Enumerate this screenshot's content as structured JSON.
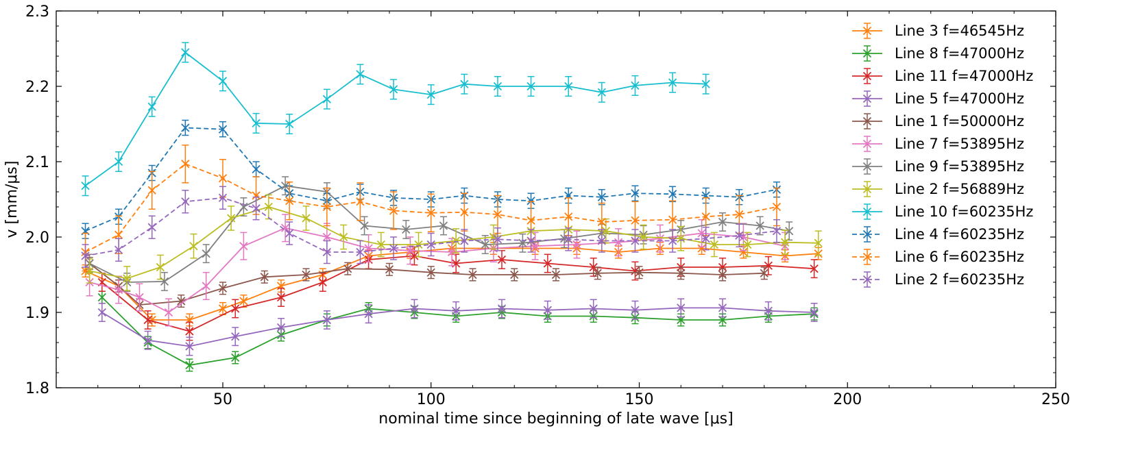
{
  "chart_data": {
    "type": "line",
    "title": "",
    "xlabel": "nominal time since beginning of late wave [μs]",
    "ylabel": "v [mm/μs]",
    "xlim": [
      10,
      250
    ],
    "ylim": [
      1.8,
      2.3
    ],
    "x_ticks": [
      50,
      100,
      150,
      200,
      250
    ],
    "x_tick_labels": [
      "50",
      "100",
      "150",
      "200",
      "250"
    ],
    "y_ticks": [
      1.8,
      1.9,
      2.0,
      2.1,
      2.2,
      2.3
    ],
    "y_tick_labels": [
      "1.8",
      "1.9",
      "2.0",
      "2.1",
      "2.2",
      "2.3"
    ],
    "legend_position": "top-right",
    "marker": "x",
    "grid": false,
    "series": [
      {
        "name": "Line 3 f=46545Hz",
        "color": "#ff7f0e",
        "dash": "solid",
        "err": 0.008,
        "points": [
          [
            17,
            1.955
          ],
          [
            25,
            1.935
          ],
          [
            33,
            1.89
          ],
          [
            42,
            1.89
          ],
          [
            50,
            1.905
          ],
          [
            55,
            1.915
          ],
          [
            64,
            1.935
          ],
          [
            74,
            1.95
          ],
          [
            85,
            1.975
          ],
          [
            95,
            1.98
          ],
          [
            105,
            1.985
          ],
          [
            115,
            1.985
          ],
          [
            125,
            1.985
          ],
          [
            135,
            1.985
          ],
          [
            145,
            1.98
          ],
          [
            155,
            1.985
          ],
          [
            165,
            1.985
          ],
          [
            175,
            1.98
          ],
          [
            185,
            1.975
          ],
          [
            193,
            1.978
          ]
        ]
      },
      {
        "name": "Line 8 f=47000Hz",
        "color": "#2ca02c",
        "dash": "solid",
        "err": 0.008,
        "points": [
          [
            21,
            1.92
          ],
          [
            32,
            1.86
          ],
          [
            42,
            1.83
          ],
          [
            53,
            1.84
          ],
          [
            64,
            1.87
          ],
          [
            75,
            1.89
          ],
          [
            85,
            1.905
          ],
          [
            96,
            1.9
          ],
          [
            106,
            1.895
          ],
          [
            117,
            1.9
          ],
          [
            128,
            1.895
          ],
          [
            139,
            1.895
          ],
          [
            149,
            1.893
          ],
          [
            160,
            1.89
          ],
          [
            170,
            1.89
          ],
          [
            181,
            1.895
          ],
          [
            192,
            1.898
          ]
        ]
      },
      {
        "name": "Line 11 f=47000Hz",
        "color": "#d62728",
        "dash": "solid",
        "err": 0.012,
        "points": [
          [
            21,
            1.94
          ],
          [
            32,
            1.89
          ],
          [
            42,
            1.875
          ],
          [
            53,
            1.905
          ],
          [
            64,
            1.92
          ],
          [
            74,
            1.94
          ],
          [
            85,
            1.97
          ],
          [
            96,
            1.975
          ],
          [
            106,
            1.965
          ],
          [
            117,
            1.97
          ],
          [
            128,
            1.965
          ],
          [
            139,
            1.96
          ],
          [
            149,
            1.955
          ],
          [
            160,
            1.96
          ],
          [
            170,
            1.96
          ],
          [
            181,
            1.962
          ],
          [
            192,
            1.958
          ]
        ]
      },
      {
        "name": "Line 5 f=47000Hz",
        "color": "#9467bd",
        "dash": "solid",
        "err": 0.012,
        "points": [
          [
            21,
            1.9
          ],
          [
            32,
            1.863
          ],
          [
            42,
            1.855
          ],
          [
            53,
            1.868
          ],
          [
            64,
            1.88
          ],
          [
            75,
            1.89
          ],
          [
            85,
            1.898
          ],
          [
            96,
            1.905
          ],
          [
            106,
            1.902
          ],
          [
            117,
            1.905
          ],
          [
            128,
            1.903
          ],
          [
            139,
            1.905
          ],
          [
            149,
            1.903
          ],
          [
            160,
            1.906
          ],
          [
            170,
            1.906
          ],
          [
            181,
            1.902
          ],
          [
            192,
            1.9
          ]
        ]
      },
      {
        "name": "Line 1 f=50000Hz",
        "color": "#8c564b",
        "dash": "solid",
        "err": 0.008,
        "points": [
          [
            18,
            1.965
          ],
          [
            25,
            1.935
          ],
          [
            30,
            1.91
          ],
          [
            40,
            1.915
          ],
          [
            50,
            1.932
          ],
          [
            60,
            1.947
          ],
          [
            70,
            1.95
          ],
          [
            80,
            1.958
          ],
          [
            90,
            1.957
          ],
          [
            100,
            1.953
          ],
          [
            110,
            1.95
          ],
          [
            120,
            1.95
          ],
          [
            130,
            1.95
          ],
          [
            140,
            1.952
          ],
          [
            150,
            1.953
          ],
          [
            160,
            1.952
          ],
          [
            170,
            1.95
          ],
          [
            180,
            1.952
          ]
        ]
      },
      {
        "name": "Line 7 f=53895Hz",
        "color": "#e377c2",
        "dash": "solid",
        "err": 0.018,
        "points": [
          [
            18,
            1.94
          ],
          [
            25,
            1.93
          ],
          [
            30,
            1.92
          ],
          [
            37,
            1.9
          ],
          [
            46,
            1.935
          ],
          [
            55,
            1.988
          ],
          [
            65,
            2.012
          ],
          [
            75,
            2.0
          ],
          [
            85,
            1.985
          ],
          [
            95,
            1.982
          ],
          [
            105,
            1.98
          ],
          [
            115,
            1.985
          ],
          [
            125,
            1.988
          ],
          [
            135,
            1.99
          ],
          [
            145,
            1.993
          ],
          [
            155,
            1.998
          ],
          [
            165,
            2.005
          ],
          [
            175,
            2.0
          ],
          [
            185,
            1.988
          ]
        ]
      },
      {
        "name": "Line 9 f=53895Hz",
        "color": "#7f7f7f",
        "dash": "solid",
        "err": 0.012,
        "points": [
          [
            18,
            1.965
          ],
          [
            27,
            1.94
          ],
          [
            36,
            1.941
          ],
          [
            46,
            1.978
          ],
          [
            55,
            2.04
          ],
          [
            65,
            2.068
          ],
          [
            75,
            2.06
          ],
          [
            84,
            2.015
          ],
          [
            94,
            2.01
          ],
          [
            103,
            2.015
          ],
          [
            113,
            1.99
          ],
          [
            122,
            1.992
          ],
          [
            132,
            1.998
          ],
          [
            141,
            2.005
          ],
          [
            151,
            2.003
          ],
          [
            160,
            2.01
          ],
          [
            170,
            2.02
          ],
          [
            179,
            2.015
          ],
          [
            186,
            2.008
          ]
        ]
      },
      {
        "name": "Line 2 f=56889Hz",
        "color": "#bcbd22",
        "dash": "solid",
        "err": 0.016,
        "points": [
          [
            18,
            1.955
          ],
          [
            27,
            1.945
          ],
          [
            35,
            1.96
          ],
          [
            43,
            1.988
          ],
          [
            52,
            2.025
          ],
          [
            61,
            2.04
          ],
          [
            70,
            2.025
          ],
          [
            79,
            2.0
          ],
          [
            88,
            1.99
          ],
          [
            97,
            1.99
          ],
          [
            106,
            1.995
          ],
          [
            115,
            2.0
          ],
          [
            124,
            2.008
          ],
          [
            133,
            2.01
          ],
          [
            142,
            2.008
          ],
          [
            151,
            2.0
          ],
          [
            160,
            1.998
          ],
          [
            168,
            1.99
          ],
          [
            176,
            1.99
          ],
          [
            185,
            1.993
          ],
          [
            193,
            1.992
          ]
        ]
      },
      {
        "name": "Line 10 f=60235Hz",
        "color": "#17becf",
        "dash": "solid",
        "err": 0.013,
        "points": [
          [
            17,
            2.068
          ],
          [
            25,
            2.1
          ],
          [
            33,
            2.173
          ],
          [
            41,
            2.245
          ],
          [
            50,
            2.207
          ],
          [
            58,
            2.151
          ],
          [
            66,
            2.15
          ],
          [
            75,
            2.183
          ],
          [
            83,
            2.216
          ],
          [
            91,
            2.196
          ],
          [
            100,
            2.189
          ],
          [
            108,
            2.203
          ],
          [
            116,
            2.2
          ],
          [
            124,
            2.2
          ],
          [
            133,
            2.2
          ],
          [
            141,
            2.192
          ],
          [
            149,
            2.201
          ],
          [
            158,
            2.205
          ],
          [
            166,
            2.203
          ]
        ]
      },
      {
        "name": "Line 4 f=60235Hz",
        "color": "#1f77b4",
        "dash": "dashed",
        "err": 0.01,
        "points": [
          [
            17,
            2.008
          ],
          [
            25,
            2.027
          ],
          [
            33,
            2.085
          ],
          [
            41,
            2.145
          ],
          [
            50,
            2.143
          ],
          [
            58,
            2.09
          ],
          [
            66,
            2.058
          ],
          [
            75,
            2.048
          ],
          [
            83,
            2.06
          ],
          [
            91,
            2.052
          ],
          [
            100,
            2.05
          ],
          [
            108,
            2.055
          ],
          [
            116,
            2.05
          ],
          [
            124,
            2.048
          ],
          [
            133,
            2.055
          ],
          [
            141,
            2.053
          ],
          [
            149,
            2.058
          ],
          [
            158,
            2.057
          ],
          [
            166,
            2.055
          ],
          [
            174,
            2.053
          ],
          [
            183,
            2.063
          ]
        ]
      },
      {
        "name": "Line 6 f=60235Hz",
        "color": "#ff7f0e",
        "dash": "dashed",
        "err": 0.025,
        "points": [
          [
            17,
            1.98
          ],
          [
            25,
            2.003
          ],
          [
            33,
            2.062
          ],
          [
            41,
            2.097
          ],
          [
            50,
            2.078
          ],
          [
            58,
            2.055
          ],
          [
            66,
            2.048
          ],
          [
            75,
            2.04
          ],
          [
            83,
            2.047
          ],
          [
            91,
            2.035
          ],
          [
            100,
            2.032
          ],
          [
            108,
            2.033
          ],
          [
            116,
            2.03
          ],
          [
            124,
            2.022
          ],
          [
            133,
            2.027
          ],
          [
            141,
            2.02
          ],
          [
            149,
            2.022
          ],
          [
            158,
            2.023
          ],
          [
            166,
            2.027
          ],
          [
            174,
            2.03
          ],
          [
            183,
            2.04
          ]
        ]
      },
      {
        "name": "Line 2 f=60235Hz",
        "color": "#9467bd",
        "dash": "dashed",
        "err": 0.015,
        "points": [
          [
            17,
            1.975
          ],
          [
            25,
            1.983
          ],
          [
            33,
            2.013
          ],
          [
            41,
            2.047
          ],
          [
            50,
            2.052
          ],
          [
            58,
            2.038
          ],
          [
            66,
            2.005
          ],
          [
            75,
            1.98
          ],
          [
            83,
            1.98
          ],
          [
            91,
            1.985
          ],
          [
            100,
            1.99
          ],
          [
            108,
            1.995
          ],
          [
            116,
            1.997
          ],
          [
            124,
            1.995
          ],
          [
            133,
            1.997
          ],
          [
            141,
            1.995
          ],
          [
            149,
            1.995
          ],
          [
            158,
            1.995
          ],
          [
            166,
            1.998
          ],
          [
            174,
            2.002
          ],
          [
            183,
            2.008
          ]
        ]
      }
    ]
  }
}
